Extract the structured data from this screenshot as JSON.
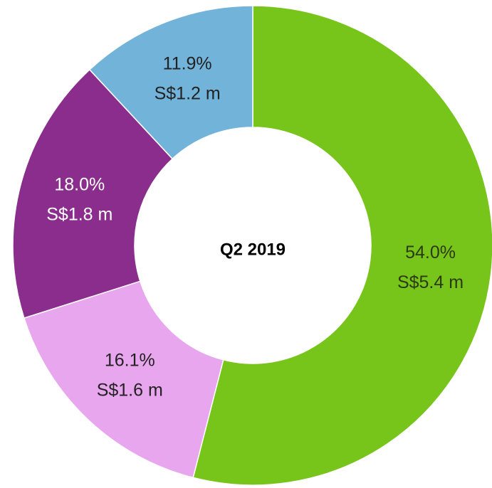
{
  "chart_data": {
    "type": "pie",
    "center_text": "Q2 2019",
    "values": [
      54.0,
      16.1,
      18.0,
      11.9
    ],
    "value_labels": [
      "54.0%",
      "16.1%",
      "18.0%",
      "11.9%"
    ],
    "amount_labels": [
      "S$5.4 m",
      "S$1.6 m",
      "S$1.8 m",
      "S$1.2 m"
    ],
    "colors": [
      "#77c41a",
      "#e8a6ee",
      "#8a2d8c",
      "#72b3da"
    ],
    "label_colors": [
      "#2b3a10",
      "#222222",
      "#ffffff",
      "#222222"
    ],
    "donut": true
  }
}
